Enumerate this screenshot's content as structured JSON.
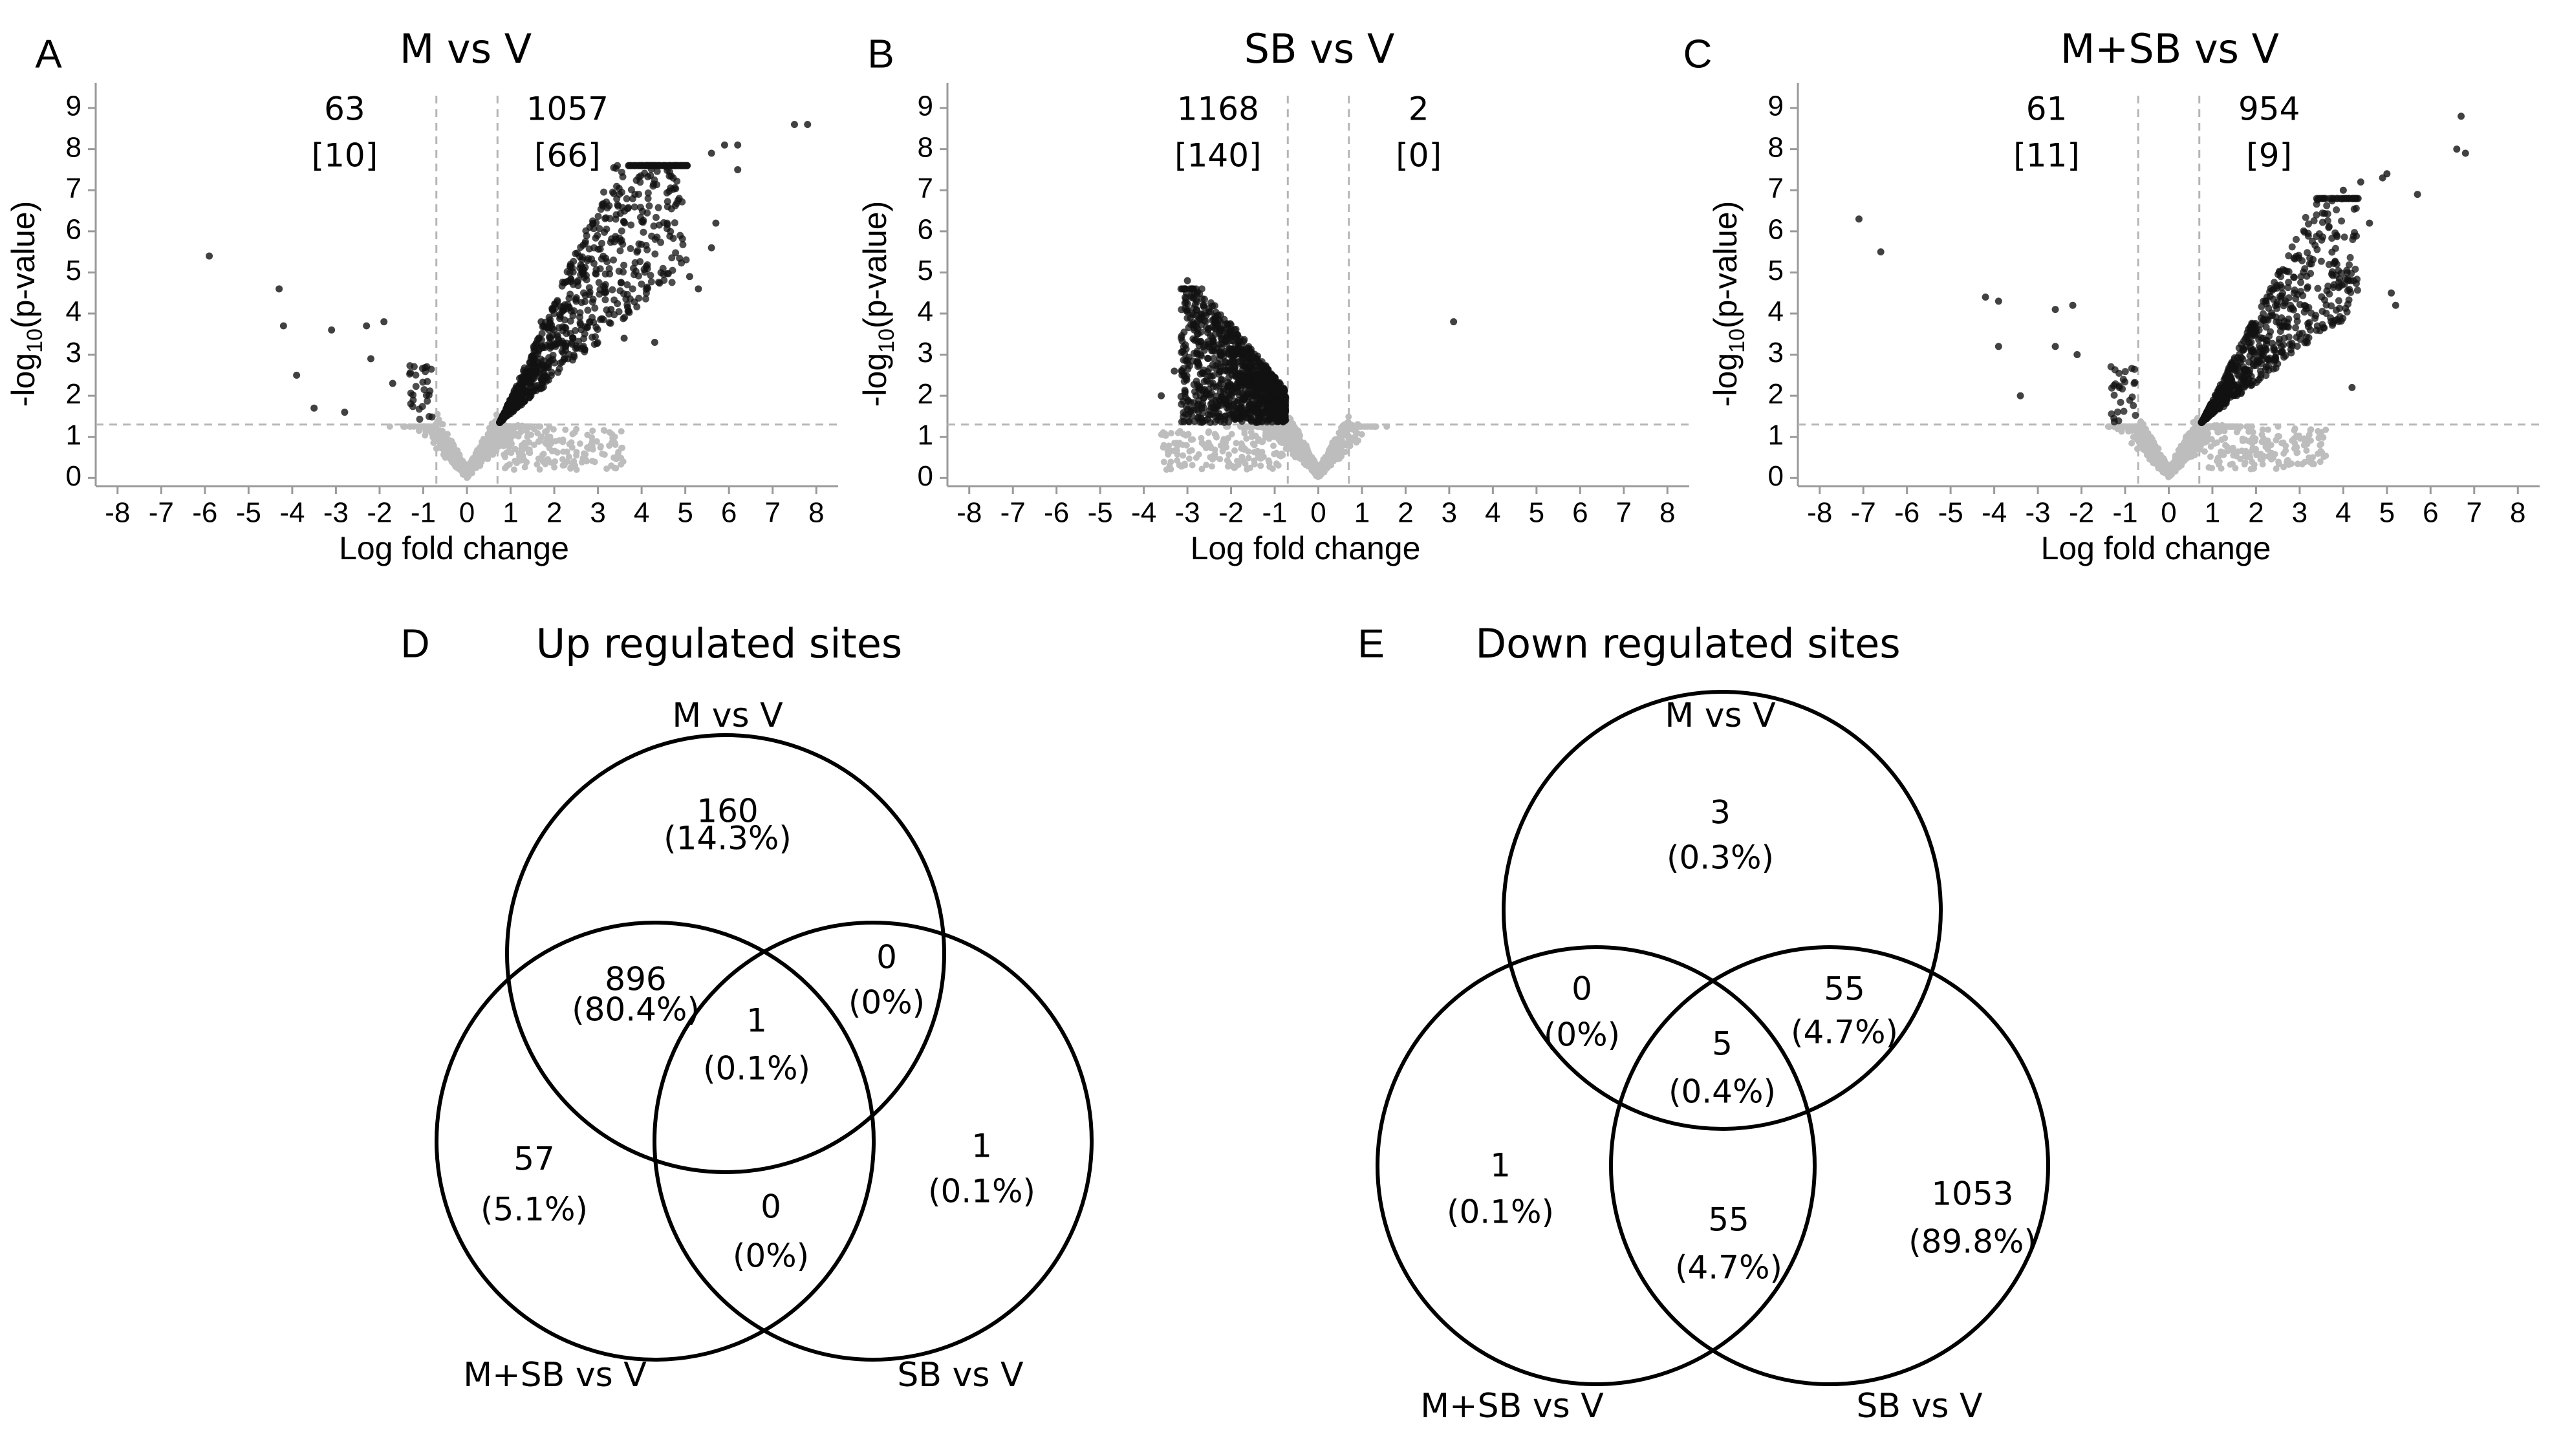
{
  "chart_data": [
    {
      "type": "scatter",
      "panel": "A",
      "title": "M vs V",
      "xlabel": "Log fold change",
      "ylabel": "-log10(p-value)",
      "ylabel_main": "-log",
      "ylabel_sub": "10",
      "ylabel_rest": "(p-value)",
      "xlim": [
        -8.5,
        8.5
      ],
      "ylim": [
        0,
        9
      ],
      "x_ticks": [
        "-8",
        "-7",
        "-6",
        "-5",
        "-4",
        "-3",
        "-2",
        "-1",
        "0",
        "1",
        "2",
        "3",
        "4",
        "5",
        "6",
        "7",
        "8"
      ],
      "y_ticks": [
        "0",
        "1",
        "2",
        "3",
        "4",
        "5",
        "6",
        "7",
        "8",
        "9"
      ],
      "fc_threshold": 0.7,
      "p_threshold": 1.3,
      "down": {
        "count": "63",
        "bracket": "[10]"
      },
      "up": {
        "count": "1057",
        "bracket": "[66]"
      },
      "cluster": "up",
      "outliers": [
        [
          -5.9,
          5.4
        ],
        [
          -4.3,
          4.6
        ],
        [
          -4.2,
          3.7
        ],
        [
          -3.9,
          2.5
        ],
        [
          -3.5,
          1.7
        ],
        [
          -3.1,
          3.6
        ],
        [
          -2.8,
          1.6
        ],
        [
          -2.3,
          3.7
        ],
        [
          -2.2,
          2.9
        ],
        [
          -1.9,
          3.8
        ],
        [
          -1.7,
          2.3
        ],
        [
          7.5,
          8.6
        ],
        [
          7.8,
          8.6
        ],
        [
          6.2,
          8.1
        ],
        [
          5.9,
          8.1
        ],
        [
          5.6,
          7.9
        ],
        [
          6.2,
          7.5
        ],
        [
          5.7,
          6.2
        ],
        [
          5.6,
          5.6
        ],
        [
          5.3,
          4.6
        ],
        [
          5.1,
          4.9
        ],
        [
          4.3,
          3.3
        ],
        [
          3.6,
          3.4
        ],
        [
          3.3,
          4.1
        ],
        [
          1.7,
          3.8
        ]
      ]
    },
    {
      "type": "scatter",
      "panel": "B",
      "title": "SB vs V",
      "xlabel": "Log fold change",
      "ylabel": "-log10(p-value)",
      "ylabel_main": "-log",
      "ylabel_sub": "10",
      "ylabel_rest": "(p-value)",
      "xlim": [
        -8.5,
        8.5
      ],
      "ylim": [
        0,
        9
      ],
      "x_ticks": [
        "-8",
        "-7",
        "-6",
        "-5",
        "-4",
        "-3",
        "-2",
        "-1",
        "0",
        "1",
        "2",
        "3",
        "4",
        "5",
        "6",
        "7",
        "8"
      ],
      "y_ticks": [
        "0",
        "1",
        "2",
        "3",
        "4",
        "5",
        "6",
        "7",
        "8",
        "9"
      ],
      "fc_threshold": 0.7,
      "p_threshold": 1.3,
      "down": {
        "count": "1168",
        "bracket": "[140]"
      },
      "up": {
        "count": "2",
        "bracket": "[0]"
      },
      "cluster": "down",
      "outliers": [
        [
          3.1,
          3.8
        ],
        [
          0.9,
          1.3
        ],
        [
          -3.6,
          2.0
        ],
        [
          -3.3,
          2.6
        ],
        [
          -3.0,
          4.8
        ]
      ]
    },
    {
      "type": "scatter",
      "panel": "C",
      "title": "M+SB vs V",
      "xlabel": "Log fold change",
      "ylabel": "-log10(p-value)",
      "ylabel_main": "-log",
      "ylabel_sub": "10",
      "ylabel_rest": "(p-value)",
      "xlim": [
        -8.5,
        8.5
      ],
      "ylim": [
        0,
        9
      ],
      "x_ticks": [
        "-8",
        "-7",
        "-6",
        "-5",
        "-4",
        "-3",
        "-2",
        "-1",
        "0",
        "1",
        "2",
        "3",
        "4",
        "5",
        "6",
        "7",
        "8"
      ],
      "y_ticks": [
        "0",
        "1",
        "2",
        "3",
        "4",
        "5",
        "6",
        "7",
        "8",
        "9"
      ],
      "fc_threshold": 0.7,
      "p_threshold": 1.3,
      "down": {
        "count": "61",
        "bracket": "[11]"
      },
      "up": {
        "count": "954",
        "bracket": "[9]"
      },
      "cluster": "up",
      "outliers": [
        [
          -7.1,
          6.3
        ],
        [
          -6.6,
          5.5
        ],
        [
          -4.2,
          4.4
        ],
        [
          -3.9,
          4.3
        ],
        [
          -3.9,
          3.2
        ],
        [
          -3.4,
          2.0
        ],
        [
          -2.6,
          4.1
        ],
        [
          -2.6,
          3.2
        ],
        [
          -2.2,
          4.2
        ],
        [
          -2.1,
          3.0
        ],
        [
          6.7,
          8.8
        ],
        [
          6.6,
          8.0
        ],
        [
          6.8,
          7.9
        ],
        [
          5.0,
          7.4
        ],
        [
          4.9,
          7.3
        ],
        [
          5.7,
          6.9
        ],
        [
          4.6,
          6.2
        ],
        [
          5.2,
          4.2
        ],
        [
          5.1,
          4.5
        ],
        [
          4.2,
          2.2
        ],
        [
          4.0,
          7.0
        ],
        [
          4.4,
          7.2
        ]
      ]
    },
    {
      "type": "venn",
      "panel": "D",
      "title": "Up regulated sites",
      "sets": [
        "M vs V",
        "M+SB vs V",
        "SB vs V"
      ],
      "regions": [
        {
          "sets": [
            "M vs V"
          ],
          "count": "160",
          "pct": "(14.3%)"
        },
        {
          "sets": [
            "M vs V",
            "M+SB vs V"
          ],
          "count": "896",
          "pct": "(80.4%)"
        },
        {
          "sets": [
            "M vs V",
            "SB vs V"
          ],
          "count": "0",
          "pct": "(0%)"
        },
        {
          "sets": [
            "M vs V",
            "M+SB vs V",
            "SB vs V"
          ],
          "count": "1",
          "pct": "(0.1%)"
        },
        {
          "sets": [
            "M+SB vs V"
          ],
          "count": "57",
          "pct": "(5.1%)"
        },
        {
          "sets": [
            "M+SB vs V",
            "SB vs V"
          ],
          "count": "0",
          "pct": "(0%)"
        },
        {
          "sets": [
            "SB vs V"
          ],
          "count": "1",
          "pct": "(0.1%)"
        }
      ]
    },
    {
      "type": "venn",
      "panel": "E",
      "title": "Down regulated sites",
      "sets": [
        "M vs V",
        "M+SB vs V",
        "SB vs V"
      ],
      "regions": [
        {
          "sets": [
            "M vs V"
          ],
          "count": "3",
          "pct": "(0.3%)"
        },
        {
          "sets": [
            "M vs V",
            "M+SB vs V"
          ],
          "count": "0",
          "pct": "(0%)"
        },
        {
          "sets": [
            "M vs V",
            "SB vs V"
          ],
          "count": "55",
          "pct": "(4.7%)"
        },
        {
          "sets": [
            "M vs V",
            "M+SB vs V",
            "SB vs V"
          ],
          "count": "5",
          "pct": "(0.4%)"
        },
        {
          "sets": [
            "M+SB vs V"
          ],
          "count": "1",
          "pct": "(0.1%)"
        },
        {
          "sets": [
            "M+SB vs V",
            "SB vs V"
          ],
          "count": "55",
          "pct": "(4.7%)"
        },
        {
          "sets": [
            "SB vs V"
          ],
          "count": "1053",
          "pct": "(89.8%)"
        }
      ]
    }
  ],
  "colors": {
    "significant": "#111111",
    "nonsignificant": "#bdbdbd",
    "axis": "#9a9a9a",
    "threshold": "#b5b5b5",
    "circle": "#000000"
  }
}
